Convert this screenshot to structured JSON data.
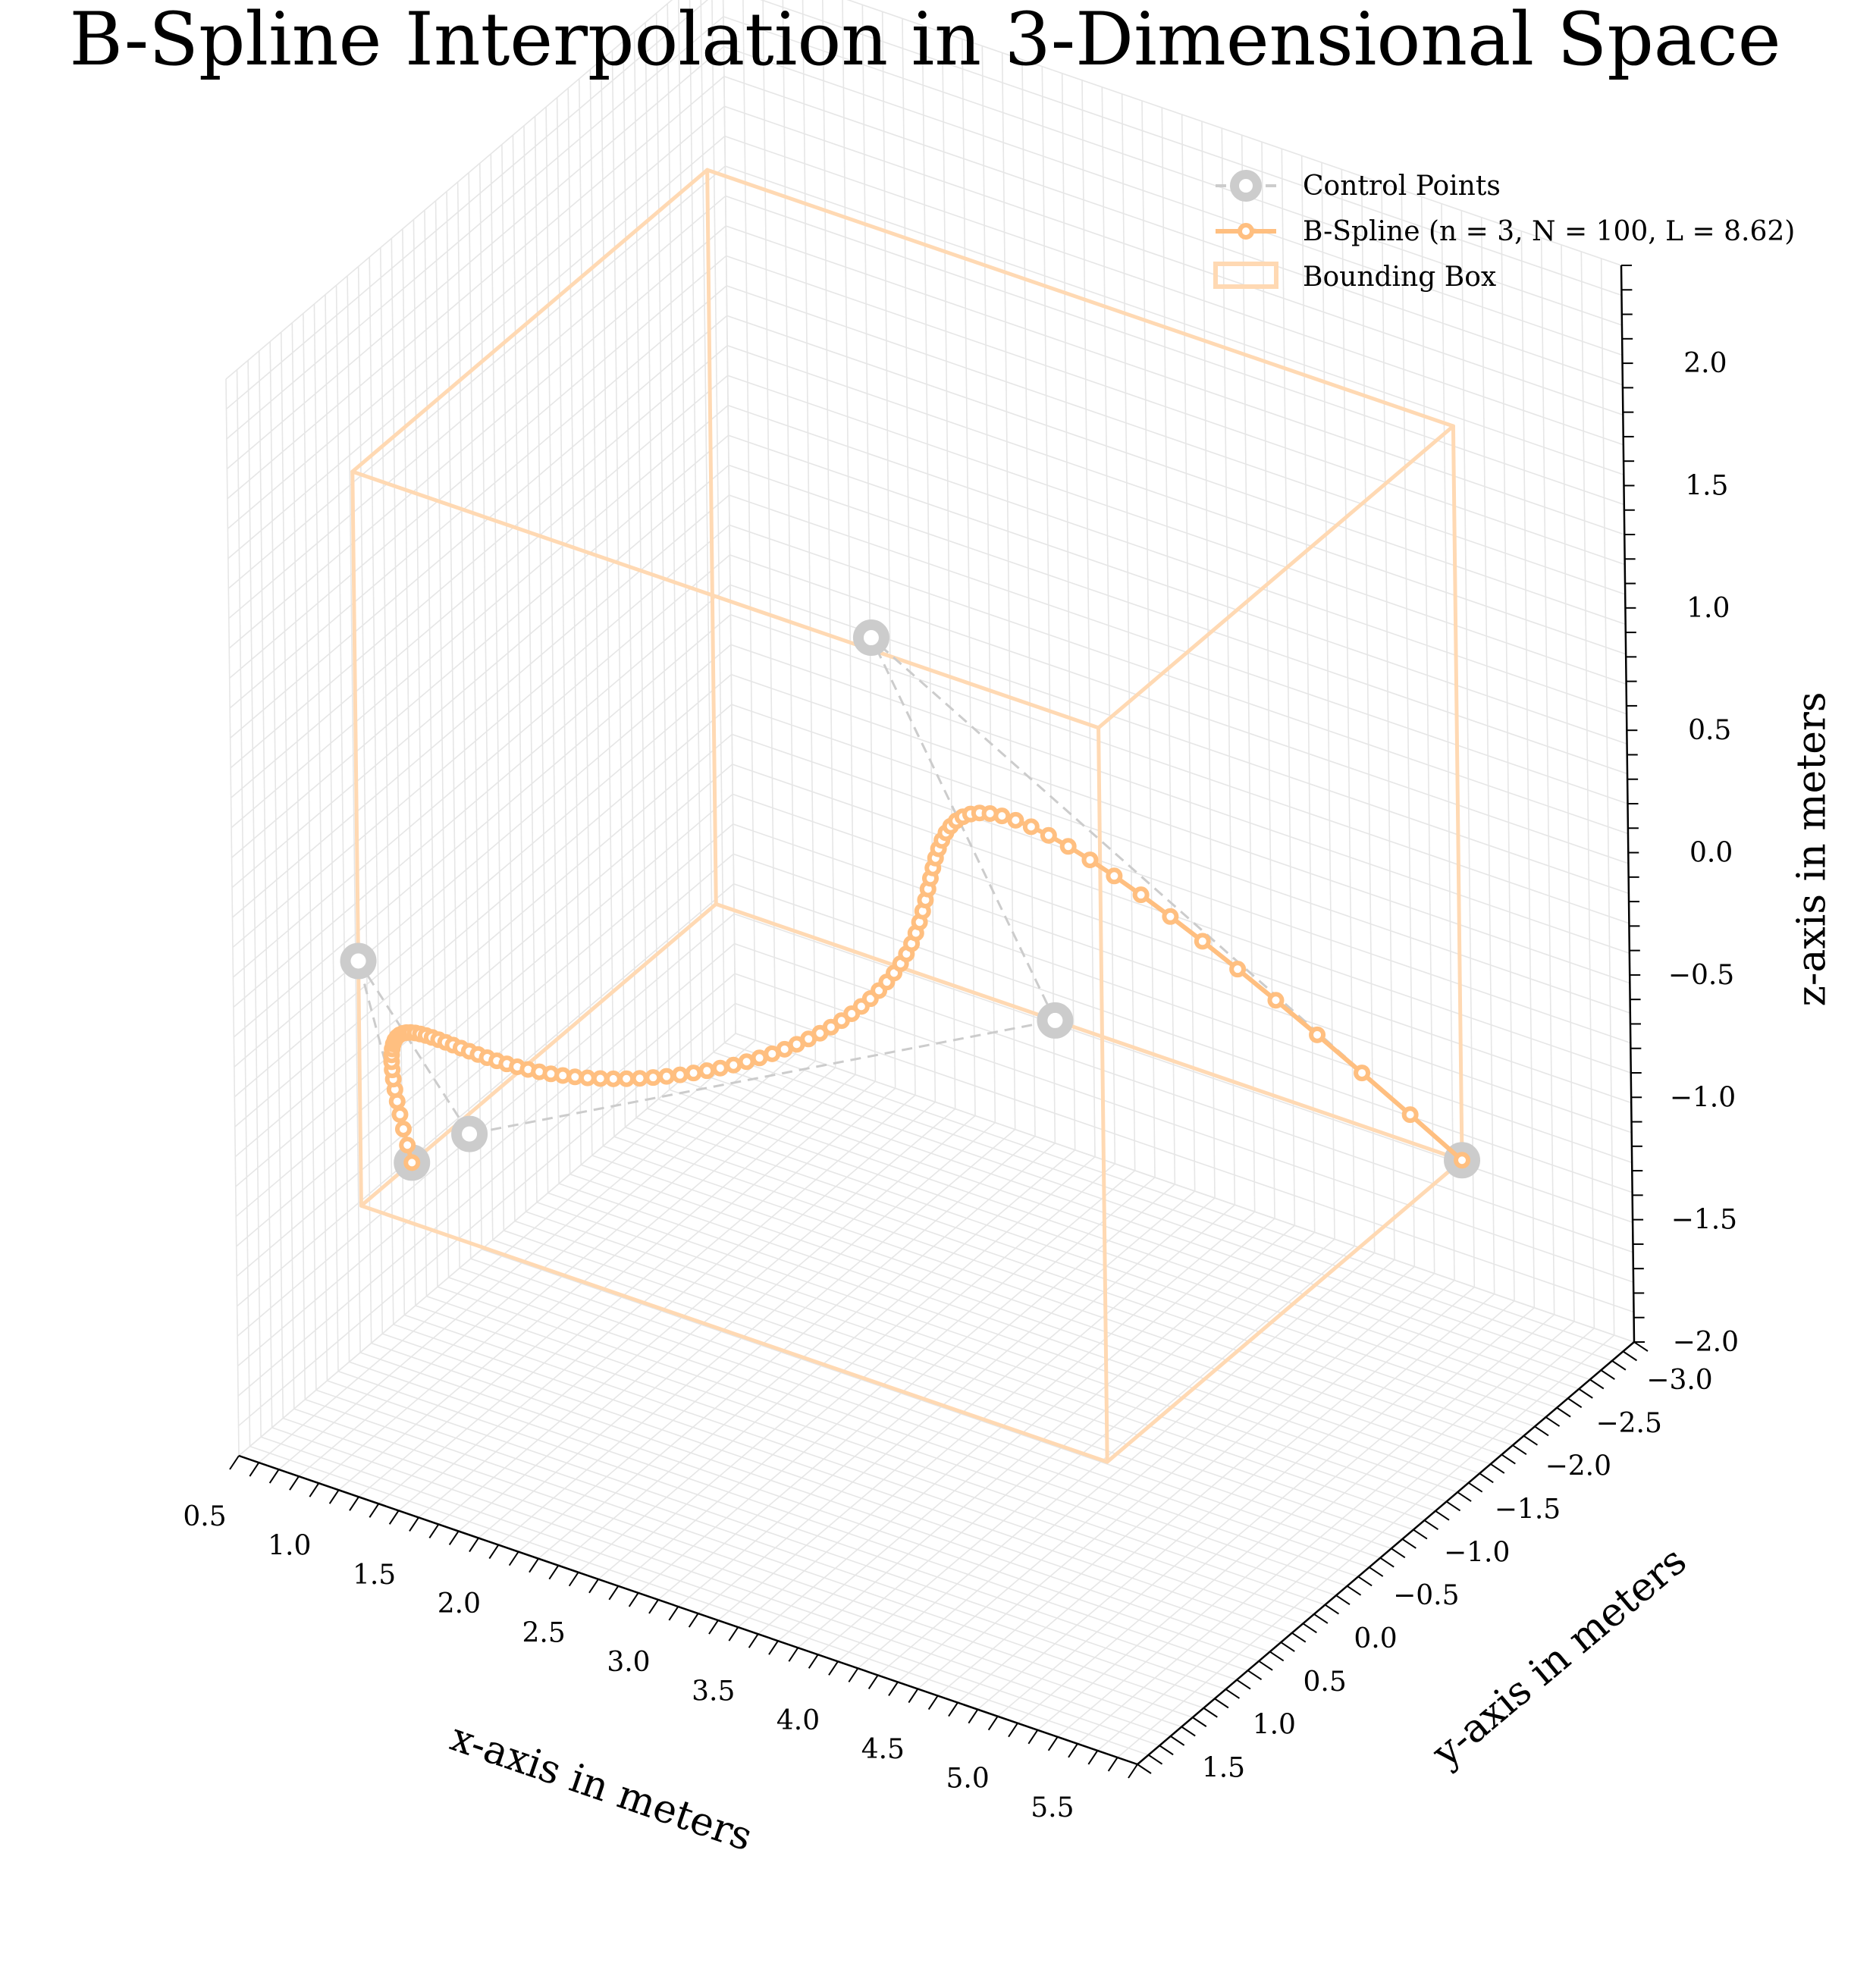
{
  "chart_data": {
    "type": "line",
    "projection": "3d",
    "title": "B-Spline Interpolation in 3-Dimensional Space",
    "xlabel": "x-axis in meters",
    "ylabel": "y-axis in meters",
    "zlabel": "z-axis in meters",
    "xlim": [
      0.5,
      5.8
    ],
    "ylim": [
      -3.0,
      1.9
    ],
    "zlim": [
      -2.0,
      2.4
    ],
    "x_ticks": [
      "0.5",
      "1.0",
      "1.5",
      "2.0",
      "2.5",
      "3.0",
      "3.5",
      "4.0",
      "4.5",
      "5.0",
      "5.5"
    ],
    "y_ticks": [
      "−3.0",
      "−2.5",
      "−2.0",
      "−1.5",
      "−1.0",
      "−0.5",
      "0.0",
      "0.5",
      "1.0",
      "1.5"
    ],
    "z_ticks": [
      "−2.0",
      "−1.5",
      "−1.0",
      "−0.5",
      "0.0",
      "0.5",
      "1.0",
      "1.5",
      "2.0"
    ],
    "grid": true,
    "legend_position": "top-right",
    "colors": {
      "control": "#cccccc",
      "spline": "#ffbf80",
      "box": "#ffd9b3",
      "grid": "#e6e6e6",
      "pane_edge": "#dddddd"
    },
    "series": [
      {
        "name": "Control Points",
        "style": "dashed-circles",
        "points": [
          {
            "x": 1.0,
            "y": 1.0,
            "z": -1.0
          },
          {
            "x": 1.0,
            "y": 1.5,
            "z": 0.0
          },
          {
            "x": 1.1,
            "y": 0.6,
            "z": -1.0
          },
          {
            "x": 3.0,
            "y": -2.0,
            "z": -1.0
          },
          {
            "x": 4.0,
            "y": 1.4,
            "z": 2.0
          },
          {
            "x": 5.4,
            "y": -2.0,
            "z": -1.0
          }
        ]
      },
      {
        "name": "B-Spline (n = 3, N = 100, L = 8.62)",
        "style": "line-circles",
        "degree": 3,
        "samples": 100,
        "length": 8.62
      },
      {
        "name": "Bounding Box",
        "style": "box",
        "xrange": [
          1.0,
          5.4
        ],
        "yrange": [
          -2.0,
          1.5
        ],
        "zrange": [
          -1.0,
          2.0
        ]
      }
    ]
  }
}
